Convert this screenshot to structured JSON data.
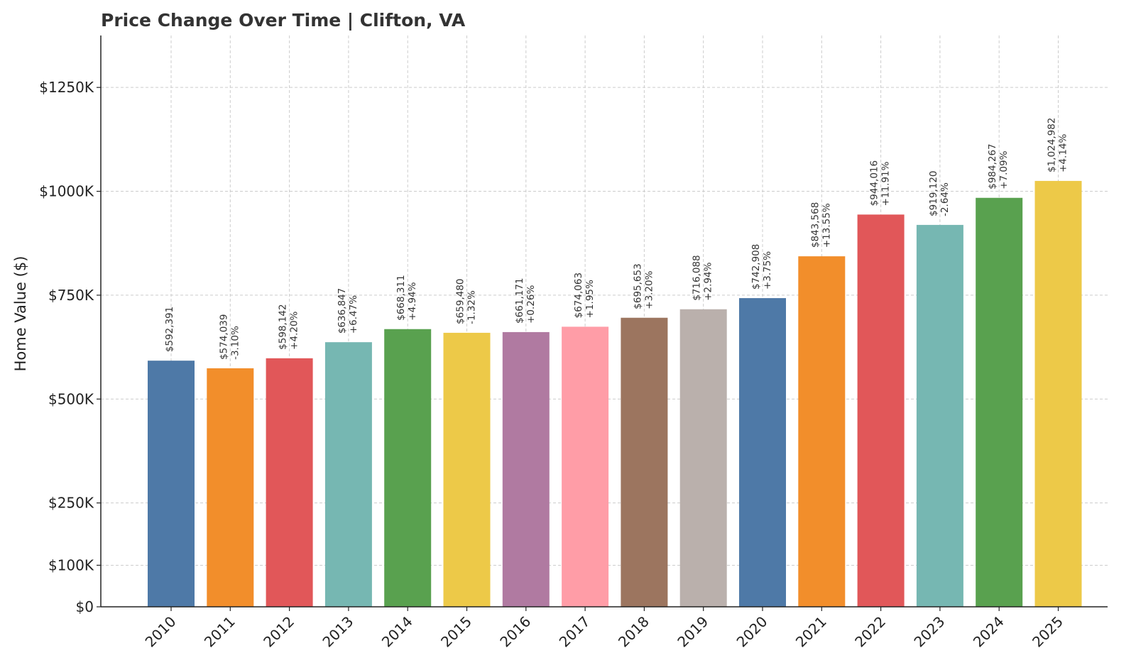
{
  "chart_data": {
    "type": "bar",
    "title": "Price Change Over Time | Clifton, VA",
    "xlabel": "",
    "ylabel": "Home Value ($)",
    "ylim": [
      0,
      1375000
    ],
    "grid": true,
    "y_ticks": [
      {
        "value": 0,
        "label": "$0"
      },
      {
        "value": 100000,
        "label": "$100K"
      },
      {
        "value": 250000,
        "label": "$250K"
      },
      {
        "value": 500000,
        "label": "$500K"
      },
      {
        "value": 750000,
        "label": "$750K"
      },
      {
        "value": 1000000,
        "label": "$1000K"
      },
      {
        "value": 1250000,
        "label": "$1250K"
      }
    ],
    "categories": [
      "2010",
      "2011",
      "2012",
      "2013",
      "2014",
      "2015",
      "2016",
      "2017",
      "2018",
      "2019",
      "2020",
      "2021",
      "2022",
      "2023",
      "2024",
      "2025"
    ],
    "values": [
      592391,
      574039,
      598142,
      636847,
      668311,
      659480,
      661171,
      674063,
      695653,
      716088,
      742908,
      843568,
      944016,
      919120,
      984267,
      1024982
    ],
    "value_labels": [
      "$592,391",
      "$574,039",
      "$598,142",
      "$636,847",
      "$668,311",
      "$659,480",
      "$661,171",
      "$674,063",
      "$695,653",
      "$716,088",
      "$742,908",
      "$843,568",
      "$944,016",
      "$919,120",
      "$984,267",
      "$1,024,982"
    ],
    "change_labels": [
      "",
      "-3.10%",
      "+4.20%",
      "+6.47%",
      "+4.94%",
      "-1.32%",
      "+0.26%",
      "+1.95%",
      "+3.20%",
      "+2.94%",
      "+3.75%",
      "+13.55%",
      "+11.91%",
      "-2.64%",
      "+7.09%",
      "+4.14%"
    ],
    "colors": [
      "#4e79a7",
      "#f28e2b",
      "#e15759",
      "#76b7b2",
      "#59a14f",
      "#edc948",
      "#b07aa1",
      "#ff9da7",
      "#9c755f",
      "#bab0ac",
      "#4e79a7",
      "#f28e2b",
      "#e15759",
      "#76b7b2",
      "#59a14f",
      "#edc948"
    ]
  }
}
